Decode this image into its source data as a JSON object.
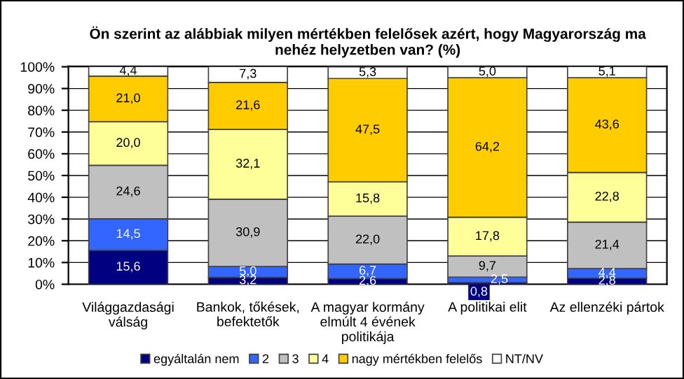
{
  "chart_data": {
    "type": "bar",
    "stacked": true,
    "title": "Ön szerint az alábbiak milyen mértékben felelősek azért, hogy Magyarország ma\nnehéz helyzetben van? (%)",
    "categories": [
      "Világgazdasági\nválság",
      "Bankok, tőkések,\nbefektetők",
      "A magyar kormány\nelmúlt 4 évének\npolitikája",
      "A politikai elit",
      "Az ellenzéki pártok"
    ],
    "series": [
      {
        "name": "egyáltalán nem",
        "color": "#000080",
        "values": [
          15.6,
          3.2,
          2.6,
          0.8,
          2.8
        ],
        "value_labels": [
          "15,6",
          "3,2",
          "2,6",
          "0,8",
          "2,8"
        ]
      },
      {
        "name": "2",
        "color": "#3366ff",
        "values": [
          14.5,
          5.0,
          6.7,
          2.5,
          4.4
        ],
        "value_labels": [
          "14,5",
          "5,0",
          "6,7",
          "2,5",
          "4,4"
        ]
      },
      {
        "name": "3",
        "color": "#c0c0c0",
        "values": [
          24.6,
          30.9,
          22.0,
          9.7,
          21.4
        ],
        "value_labels": [
          "24,6",
          "30,9",
          "22,0",
          "9,7",
          "21,4"
        ]
      },
      {
        "name": "4",
        "color": "#ffff99",
        "values": [
          20.0,
          32.1,
          15.8,
          17.8,
          22.8
        ],
        "value_labels": [
          "20,0",
          "32,1",
          "15,8",
          "17,8",
          "22,8"
        ]
      },
      {
        "name": "nagy mértékben felelős",
        "color": "#ffcc00",
        "values": [
          21.0,
          21.6,
          47.5,
          64.2,
          43.6
        ],
        "value_labels": [
          "21,0",
          "21,6",
          "47,5",
          "64,2",
          "43,6"
        ]
      },
      {
        "name": "NT/NV",
        "color": "#ffffff",
        "values": [
          4.4,
          7.3,
          5.3,
          5.0,
          5.1
        ],
        "value_labels": [
          "4,4",
          "7,3",
          "5,3",
          "5,0",
          "5,1"
        ]
      }
    ],
    "ylim": [
      0,
      100.2
    ],
    "yticks": [
      {
        "value": 0,
        "label": "0%"
      },
      {
        "value": 10,
        "label": "10%"
      },
      {
        "value": 20,
        "label": "20%"
      },
      {
        "value": 30,
        "label": "30%"
      },
      {
        "value": 40,
        "label": "40%"
      },
      {
        "value": 50,
        "label": "50%"
      },
      {
        "value": 60,
        "label": "60%"
      },
      {
        "value": 70,
        "label": "70%"
      },
      {
        "value": 80,
        "label": "80%"
      },
      {
        "value": 90,
        "label": "90%"
      },
      {
        "value": 100,
        "label": "100%"
      }
    ],
    "grid": "y",
    "legend": "bottom"
  }
}
